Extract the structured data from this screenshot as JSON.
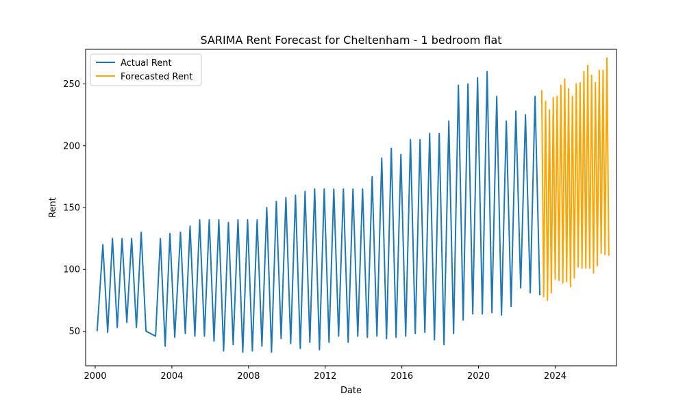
{
  "chart_data": {
    "type": "line",
    "title": "SARIMA Rent Forecast for Cheltenham - 1 bedroom flat",
    "xlabel": "Date",
    "ylabel": "Rent",
    "xlim": [
      1999.5,
      2027.2
    ],
    "ylim": [
      22,
      278
    ],
    "x_ticks": [
      2000,
      2004,
      2008,
      2012,
      2016,
      2020,
      2024
    ],
    "y_ticks": [
      50,
      100,
      150,
      200,
      250
    ],
    "grid": false,
    "legend_position": "top-left",
    "series": [
      {
        "name": "Actual Rent",
        "color": "#1f77b4",
        "points": [
          [
            2000.1,
            50
          ],
          [
            2000.4,
            120
          ],
          [
            2000.65,
            49
          ],
          [
            2000.9,
            125
          ],
          [
            2001.15,
            53
          ],
          [
            2001.4,
            125
          ],
          [
            2001.65,
            57
          ],
          [
            2001.9,
            125
          ],
          [
            2002.15,
            53
          ],
          [
            2002.4,
            130
          ],
          [
            2002.65,
            50
          ],
          [
            2003.15,
            46
          ],
          [
            2003.4,
            125
          ],
          [
            2003.65,
            38
          ],
          [
            2003.9,
            129
          ],
          [
            2004.15,
            45
          ],
          [
            2004.45,
            130
          ],
          [
            2004.7,
            48
          ],
          [
            2004.95,
            135
          ],
          [
            2005.2,
            46
          ],
          [
            2005.45,
            140
          ],
          [
            2005.7,
            46
          ],
          [
            2005.95,
            140
          ],
          [
            2006.2,
            42
          ],
          [
            2006.45,
            140
          ],
          [
            2006.7,
            34
          ],
          [
            2006.95,
            138
          ],
          [
            2007.2,
            39
          ],
          [
            2007.45,
            140
          ],
          [
            2007.7,
            33
          ],
          [
            2007.95,
            140
          ],
          [
            2008.2,
            34
          ],
          [
            2008.45,
            140
          ],
          [
            2008.7,
            38
          ],
          [
            2008.95,
            150
          ],
          [
            2009.2,
            33
          ],
          [
            2009.45,
            155
          ],
          [
            2009.7,
            44
          ],
          [
            2009.95,
            158
          ],
          [
            2010.2,
            40
          ],
          [
            2010.45,
            160
          ],
          [
            2010.7,
            36
          ],
          [
            2010.95,
            163
          ],
          [
            2011.2,
            41
          ],
          [
            2011.45,
            165
          ],
          [
            2011.7,
            35
          ],
          [
            2011.95,
            165
          ],
          [
            2012.2,
            41
          ],
          [
            2012.45,
            165
          ],
          [
            2012.7,
            46
          ],
          [
            2012.95,
            165
          ],
          [
            2013.2,
            41
          ],
          [
            2013.45,
            165
          ],
          [
            2013.7,
            46
          ],
          [
            2013.95,
            165
          ],
          [
            2014.2,
            45
          ],
          [
            2014.45,
            175
          ],
          [
            2014.7,
            46
          ],
          [
            2014.95,
            190
          ],
          [
            2015.2,
            44
          ],
          [
            2015.45,
            198
          ],
          [
            2015.7,
            45
          ],
          [
            2015.95,
            193
          ],
          [
            2016.2,
            46
          ],
          [
            2016.45,
            205
          ],
          [
            2016.7,
            48
          ],
          [
            2016.95,
            205
          ],
          [
            2017.2,
            49
          ],
          [
            2017.45,
            210
          ],
          [
            2017.7,
            43
          ],
          [
            2017.95,
            210
          ],
          [
            2018.2,
            39
          ],
          [
            2018.45,
            220
          ],
          [
            2018.7,
            48
          ],
          [
            2018.95,
            249
          ],
          [
            2019.2,
            59
          ],
          [
            2019.45,
            250
          ],
          [
            2019.7,
            64
          ],
          [
            2019.95,
            255
          ],
          [
            2020.2,
            64
          ],
          [
            2020.45,
            260
          ],
          [
            2020.7,
            65
          ],
          [
            2020.95,
            240
          ],
          [
            2021.2,
            63
          ],
          [
            2021.45,
            220
          ],
          [
            2021.7,
            70
          ],
          [
            2021.95,
            228
          ],
          [
            2022.2,
            85
          ],
          [
            2022.45,
            225
          ],
          [
            2022.7,
            81
          ],
          [
            2022.95,
            240
          ],
          [
            2023.2,
            79
          ]
        ]
      },
      {
        "name": "Forecasted Rent",
        "color": "#ffa500",
        "points": [
          [
            2023.3,
            245
          ],
          [
            2023.4,
            78
          ],
          [
            2023.5,
            236
          ],
          [
            2023.6,
            75
          ],
          [
            2023.7,
            229
          ],
          [
            2023.8,
            81
          ],
          [
            2023.9,
            239
          ],
          [
            2024.0,
            92
          ],
          [
            2024.1,
            240
          ],
          [
            2024.2,
            91
          ],
          [
            2024.3,
            249
          ],
          [
            2024.4,
            89
          ],
          [
            2024.5,
            254
          ],
          [
            2024.6,
            90
          ],
          [
            2024.7,
            246
          ],
          [
            2024.8,
            86
          ],
          [
            2024.9,
            240
          ],
          [
            2025.0,
            93
          ],
          [
            2025.1,
            250
          ],
          [
            2025.2,
            102
          ],
          [
            2025.3,
            251
          ],
          [
            2025.4,
            101
          ],
          [
            2025.5,
            260
          ],
          [
            2025.6,
            101
          ],
          [
            2025.7,
            265
          ],
          [
            2025.8,
            101
          ],
          [
            2025.9,
            257
          ],
          [
            2026.0,
            97
          ],
          [
            2026.1,
            251
          ],
          [
            2026.2,
            103
          ],
          [
            2026.3,
            261
          ],
          [
            2026.4,
            113
          ],
          [
            2026.5,
            261
          ],
          [
            2026.6,
            112
          ],
          [
            2026.7,
            271
          ],
          [
            2026.8,
            111
          ]
        ]
      }
    ]
  }
}
